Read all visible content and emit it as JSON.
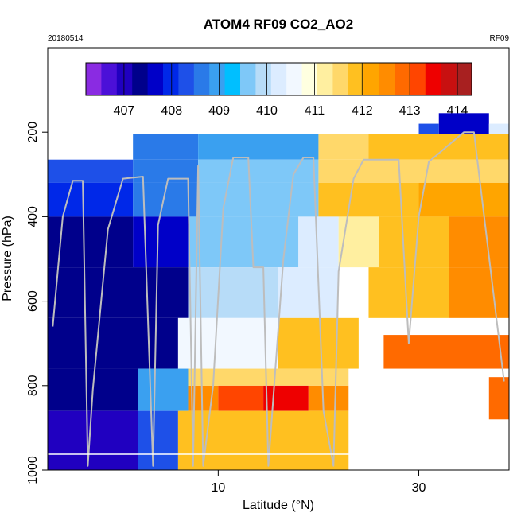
{
  "chart_data": {
    "type": "heatmap",
    "title": "ATOM4 RF09 CO2_AO2",
    "date_label": "20180514",
    "flight_label": "RF09",
    "xlabel": "Latitude (°N)",
    "ylabel": "Pressure (hPa)",
    "xlim": [
      -7,
      39
    ],
    "ylim": [
      1000,
      0
    ],
    "x_ticks": [
      10,
      30
    ],
    "y_ticks": [
      200,
      400,
      600,
      800,
      1000
    ],
    "colorbar": {
      "min": 406.2,
      "max": 414.3,
      "tick_values": [
        407,
        408,
        409,
        410,
        411,
        412,
        413,
        414
      ],
      "colors": [
        "#8a2be2",
        "#4b10d8",
        "#2000c0",
        "#00008b",
        "#0000c8",
        "#0028e8",
        "#1e50e8",
        "#2a7ae8",
        "#3aa0f0",
        "#00bfff",
        "#7ec8f8",
        "#b7dcf8",
        "#dcecff",
        "#f2f8ff",
        "#ffffe0",
        "#ffefa0",
        "#ffd86a",
        "#ffc020",
        "#ffa500",
        "#ff8c00",
        "#ff6a00",
        "#ff4500",
        "#ee0000",
        "#c81010",
        "#a82020"
      ]
    },
    "cells": [
      {
        "lat0": -7,
        "lat1": 1.5,
        "p0": 265,
        "p1": 320,
        "v": 408.3
      },
      {
        "lat0": 1.5,
        "lat1": 8,
        "p0": 265,
        "p1": 320,
        "v": 408.5
      },
      {
        "lat0": 1.5,
        "lat1": 8,
        "p0": 205,
        "p1": 265,
        "v": 408.7
      },
      {
        "lat0": 8,
        "lat1": 20,
        "p0": 205,
        "p1": 265,
        "v": 409.0
      },
      {
        "lat0": 20,
        "lat1": 25,
        "p0": 205,
        "p1": 265,
        "v": 411.4
      },
      {
        "lat0": 25,
        "lat1": 39,
        "p0": 205,
        "p1": 265,
        "v": 411.8
      },
      {
        "lat0": 32,
        "lat1": 37,
        "p0": 155,
        "p1": 205,
        "v": 407.6
      },
      {
        "lat0": 30,
        "lat1": 32,
        "p0": 180,
        "p1": 205,
        "v": 408.2
      },
      {
        "lat0": 37,
        "lat1": 39,
        "p0": 180,
        "p1": 205,
        "v": 410.3
      },
      {
        "lat0": 8,
        "lat1": 20,
        "p0": 265,
        "p1": 320,
        "v": 409.6
      },
      {
        "lat0": 20,
        "lat1": 39,
        "p0": 265,
        "p1": 320,
        "v": 411.7
      },
      {
        "lat0": -7,
        "lat1": 1.5,
        "p0": 320,
        "p1": 400,
        "v": 408.1
      },
      {
        "lat0": 1.5,
        "lat1": 8,
        "p0": 320,
        "p1": 400,
        "v": 408.6
      },
      {
        "lat0": 8,
        "lat1": 20,
        "p0": 320,
        "p1": 400,
        "v": 409.5
      },
      {
        "lat0": 20,
        "lat1": 30,
        "p0": 320,
        "p1": 400,
        "v": 411.8
      },
      {
        "lat0": 30,
        "lat1": 39,
        "p0": 320,
        "p1": 400,
        "v": 412.3
      },
      {
        "lat0": -7,
        "lat1": 1.5,
        "p0": 400,
        "p1": 520,
        "v": 407.3
      },
      {
        "lat0": 1.5,
        "lat1": 7,
        "p0": 400,
        "p1": 520,
        "v": 407.6
      },
      {
        "lat0": 7,
        "lat1": 18,
        "p0": 400,
        "p1": 520,
        "v": 409.7
      },
      {
        "lat0": 18,
        "lat1": 22,
        "p0": 400,
        "p1": 520,
        "v": 410.4
      },
      {
        "lat0": 22,
        "lat1": 26,
        "p0": 400,
        "p1": 520,
        "v": 411.2
      },
      {
        "lat0": 26,
        "lat1": 33,
        "p0": 400,
        "p1": 520,
        "v": 412.0
      },
      {
        "lat0": 33,
        "lat1": 39,
        "p0": 400,
        "p1": 520,
        "v": 412.6
      },
      {
        "lat0": -7,
        "lat1": 7,
        "p0": 520,
        "p1": 640,
        "v": 407.4
      },
      {
        "lat0": 7,
        "lat1": 16,
        "p0": 520,
        "p1": 640,
        "v": 409.9
      },
      {
        "lat0": 16,
        "lat1": 22,
        "p0": 520,
        "p1": 640,
        "v": 410.1
      },
      {
        "lat0": 25,
        "lat1": 33,
        "p0": 520,
        "p1": 640,
        "v": 411.9
      },
      {
        "lat0": 33,
        "lat1": 39,
        "p0": 520,
        "p1": 640,
        "v": 412.4
      },
      {
        "lat0": -7,
        "lat1": 6,
        "p0": 640,
        "p1": 760,
        "v": 407.3
      },
      {
        "lat0": 6,
        "lat1": 16,
        "p0": 640,
        "p1": 760,
        "v": 410.6
      },
      {
        "lat0": 16,
        "lat1": 24,
        "p0": 640,
        "p1": 760,
        "v": 411.8
      },
      {
        "lat0": 26.5,
        "lat1": 39,
        "p0": 680,
        "p1": 760,
        "v": 412.8
      },
      {
        "lat0": -7,
        "lat1": 2,
        "p0": 760,
        "p1": 860,
        "v": 407.2
      },
      {
        "lat0": 2,
        "lat1": 7,
        "p0": 760,
        "p1": 860,
        "v": 408.9
      },
      {
        "lat0": 7,
        "lat1": 10,
        "p0": 800,
        "p1": 860,
        "v": 412.5
      },
      {
        "lat0": 10,
        "lat1": 14.5,
        "p0": 800,
        "p1": 860,
        "v": 413.3
      },
      {
        "lat0": 14.5,
        "lat1": 19,
        "p0": 800,
        "p1": 860,
        "v": 413.6
      },
      {
        "lat0": 19,
        "lat1": 23,
        "p0": 800,
        "p1": 860,
        "v": 412.4
      },
      {
        "lat0": 7,
        "lat1": 23,
        "p0": 760,
        "p1": 800,
        "v": 411.7
      },
      {
        "lat0": 37,
        "lat1": 39,
        "p0": 780,
        "p1": 880,
        "v": 412.7
      },
      {
        "lat0": -7,
        "lat1": 2,
        "p0": 860,
        "p1": 1000,
        "v": 407.0
      },
      {
        "lat0": 2,
        "lat1": 6,
        "p0": 860,
        "p1": 1000,
        "v": 408.2
      },
      {
        "lat0": 6,
        "lat1": 23,
        "p0": 860,
        "p1": 1000,
        "v": 412.0
      }
    ],
    "flight_track": [
      {
        "lat": -6.5,
        "p": 660
      },
      {
        "lat": -5.5,
        "p": 400
      },
      {
        "lat": -4.5,
        "p": 315
      },
      {
        "lat": -3.5,
        "p": 315
      },
      {
        "lat": -3,
        "p": 990
      },
      {
        "lat": -2.5,
        "p": 810
      },
      {
        "lat": -1,
        "p": 430
      },
      {
        "lat": 0.5,
        "p": 310
      },
      {
        "lat": 2.5,
        "p": 305
      },
      {
        "lat": 3.5,
        "p": 990
      },
      {
        "lat": 4,
        "p": 420
      },
      {
        "lat": 5,
        "p": 310
      },
      {
        "lat": 7,
        "p": 310
      },
      {
        "lat": 7.5,
        "p": 990
      },
      {
        "lat": 8,
        "p": 280
      },
      {
        "lat": 8.5,
        "p": 990
      },
      {
        "lat": 9.5,
        "p": 800
      },
      {
        "lat": 10.5,
        "p": 380
      },
      {
        "lat": 11.5,
        "p": 260
      },
      {
        "lat": 13,
        "p": 260
      },
      {
        "lat": 13.5,
        "p": 520
      },
      {
        "lat": 14.5,
        "p": 520
      },
      {
        "lat": 15,
        "p": 990
      },
      {
        "lat": 16.5,
        "p": 500
      },
      {
        "lat": 17.5,
        "p": 300
      },
      {
        "lat": 18.5,
        "p": 260
      },
      {
        "lat": 19.5,
        "p": 260
      },
      {
        "lat": 20.5,
        "p": 860
      },
      {
        "lat": 21.5,
        "p": 990
      },
      {
        "lat": 22,
        "p": 530
      },
      {
        "lat": 23.5,
        "p": 310
      },
      {
        "lat": 24.5,
        "p": 265
      },
      {
        "lat": 28,
        "p": 265
      },
      {
        "lat": 29,
        "p": 700
      },
      {
        "lat": 30,
        "p": 400
      },
      {
        "lat": 31,
        "p": 270
      },
      {
        "lat": 34.5,
        "p": 200
      },
      {
        "lat": 35.5,
        "p": 200
      },
      {
        "lat": 38.5,
        "p": 790
      }
    ]
  }
}
